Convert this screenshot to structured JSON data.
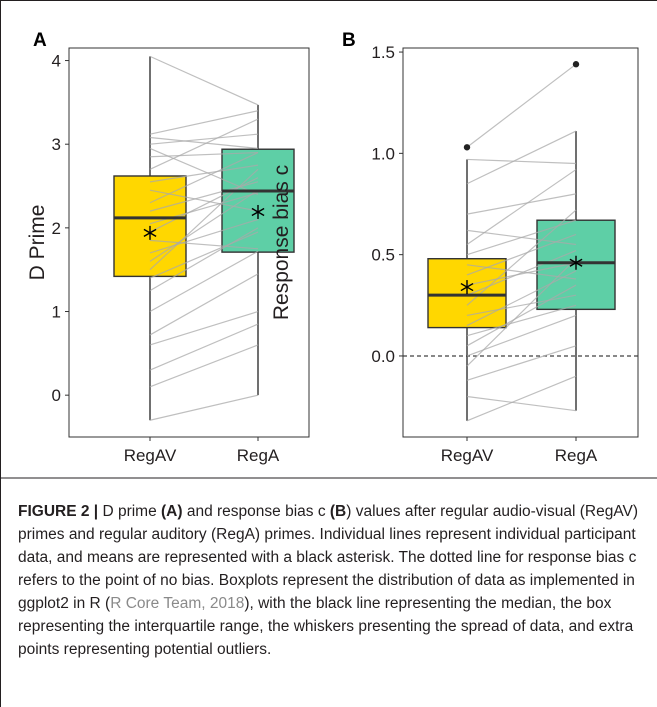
{
  "chart_data": [
    {
      "panel_label": "A",
      "type": "boxplot",
      "ylabel": "D Prime",
      "xlabel": "",
      "categories": [
        "RegAV",
        "RegA"
      ],
      "ylim": [
        -0.5,
        4.15
      ],
      "yticks": [
        0,
        1,
        2,
        3,
        4
      ],
      "grid": false,
      "boxes": [
        {
          "category": "RegAV",
          "color": "#ffd700",
          "whisker_low": -0.3,
          "q1": 1.42,
          "median": 2.12,
          "q3": 2.62,
          "whisker_high": 4.05,
          "mean": 1.94,
          "outliers": []
        },
        {
          "category": "RegA",
          "color": "#5ecfa6",
          "whisker_low": 0.0,
          "q1": 1.71,
          "median": 2.44,
          "q3": 2.94,
          "whisker_high": 3.47,
          "mean": 2.19,
          "outliers": []
        }
      ],
      "participants": [
        [
          4.05,
          3.47
        ],
        [
          3.12,
          3.4
        ],
        [
          3.08,
          2.95
        ],
        [
          3.0,
          3.12
        ],
        [
          2.95,
          2.4
        ],
        [
          2.85,
          2.9
        ],
        [
          2.7,
          3.3
        ],
        [
          2.55,
          2.75
        ],
        [
          2.45,
          2.2
        ],
        [
          2.3,
          2.9
        ],
        [
          2.2,
          2.55
        ],
        [
          2.05,
          2.42
        ],
        [
          1.95,
          2.6
        ],
        [
          1.85,
          1.75
        ],
        [
          1.7,
          2.1
        ],
        [
          1.6,
          2.45
        ],
        [
          1.5,
          2.7
        ],
        [
          1.4,
          1.95
        ],
        [
          1.25,
          2.0
        ],
        [
          1.0,
          1.72
        ],
        [
          0.72,
          1.45
        ],
        [
          0.6,
          1.0
        ],
        [
          0.3,
          0.85
        ],
        [
          0.1,
          0.6
        ],
        [
          -0.3,
          0.0
        ]
      ]
    },
    {
      "panel_label": "B",
      "type": "boxplot",
      "ylabel": "Response bias c",
      "xlabel": "",
      "categories": [
        "RegAV",
        "RegA"
      ],
      "ylim": [
        -0.4,
        1.52
      ],
      "yticks": [
        0.0,
        0.5,
        1.0,
        1.5
      ],
      "tick_labels": [
        "0.0",
        "0.5",
        "1.0",
        "1.5"
      ],
      "reference_line": {
        "y": 0.0,
        "style": "dashed"
      },
      "grid": false,
      "boxes": [
        {
          "category": "RegAV",
          "color": "#ffd700",
          "whisker_low": -0.32,
          "q1": 0.14,
          "median": 0.3,
          "q3": 0.48,
          "whisker_high": 0.97,
          "mean": 0.34,
          "outliers": [
            1.03
          ]
        },
        {
          "category": "RegA",
          "color": "#5ecfa6",
          "whisker_low": -0.27,
          "q1": 0.23,
          "median": 0.46,
          "q3": 0.67,
          "whisker_high": 1.11,
          "mean": 0.46,
          "outliers": [
            1.44
          ]
        }
      ],
      "participants": [
        [
          1.03,
          1.44
        ],
        [
          0.97,
          0.95
        ],
        [
          0.85,
          1.11
        ],
        [
          0.7,
          0.8
        ],
        [
          0.62,
          0.55
        ],
        [
          0.55,
          0.92
        ],
        [
          0.5,
          0.67
        ],
        [
          0.45,
          0.38
        ],
        [
          0.4,
          0.6
        ],
        [
          0.35,
          0.46
        ],
        [
          0.3,
          0.52
        ],
        [
          0.25,
          0.72
        ],
        [
          0.2,
          0.3
        ],
        [
          0.15,
          0.42
        ],
        [
          0.1,
          0.25
        ],
        [
          0.05,
          0.35
        ],
        [
          0.0,
          0.2
        ],
        [
          -0.05,
          0.48
        ],
        [
          -0.12,
          0.05
        ],
        [
          -0.2,
          -0.27
        ],
        [
          -0.32,
          -0.1
        ]
      ]
    }
  ],
  "caption": {
    "figure_label": "FIGURE 2 |",
    "seg1": " D prime ",
    "label_a": "(A)",
    "seg2": " and response bias c ",
    "label_b": "(B",
    "seg3": ") values after regular audio-visual (RegAV) primes and regular auditory (RegA) primes. Individual lines represent individual participant data, and means are represented with a black asterisk. The dotted line for response bias c refers to the point of no bias. Boxplots represent the distribution of data as implemented in ggplot2 in R (",
    "citation": "R Core Team, 2018",
    "seg4": "), with the black line representing the median, the box representing the interquartile range, the whiskers presenting the spread of data, and extra points representing potential outliers."
  }
}
